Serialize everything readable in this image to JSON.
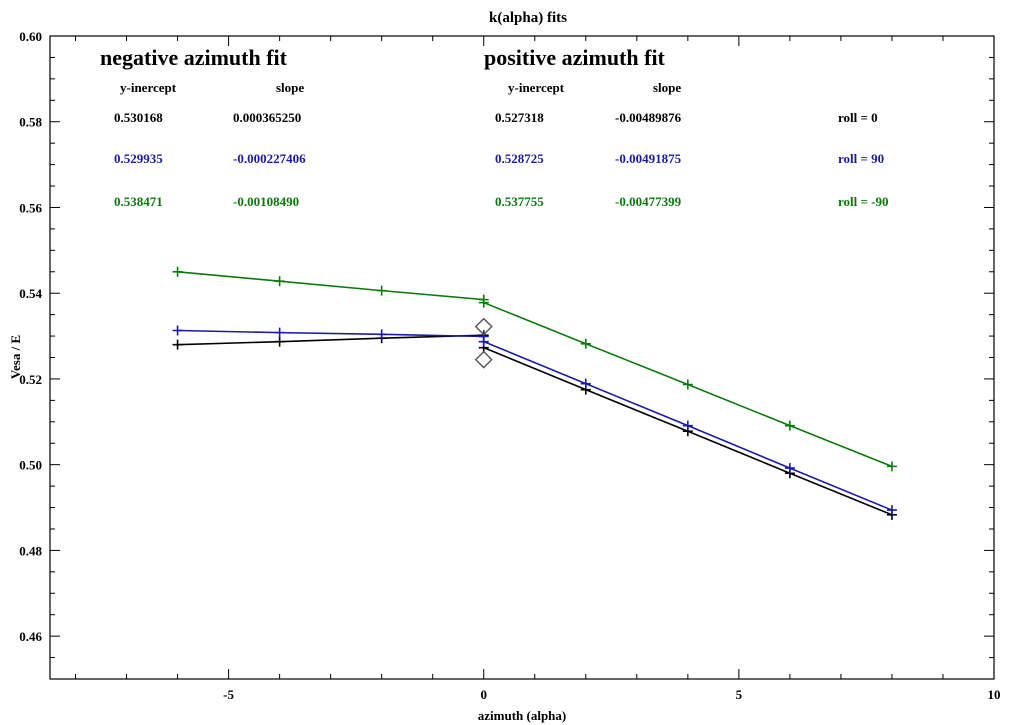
{
  "chart_data": {
    "type": "line",
    "title": "k(alpha) fits",
    "xlabel": "azimuth (alpha)",
    "ylabel": "Vesa / E",
    "xlim": [
      -8.5,
      10
    ],
    "ylim": [
      0.45,
      0.6
    ],
    "xticks": [
      -5,
      0,
      5,
      10
    ],
    "yticks": [
      0.46,
      0.48,
      0.5,
      0.52,
      0.54,
      0.56,
      0.58,
      0.6
    ],
    "x_tick_labels": [
      "-5",
      "0",
      "5",
      "10"
    ],
    "y_tick_labels": [
      "0.46",
      "0.48",
      "0.50",
      "0.52",
      "0.54",
      "0.56",
      "0.58",
      "0.60"
    ],
    "grid": false,
    "series": [
      {
        "color": "#000000",
        "x": [
          -6,
          -4,
          -2,
          0,
          0,
          2,
          4,
          6,
          8
        ],
        "y": [
          0.528,
          0.5287,
          0.5295,
          0.5302,
          0.5273,
          0.5175,
          0.5078,
          0.498,
          0.4883
        ]
      },
      {
        "color": "#1a1aa6",
        "x": [
          -6,
          -4,
          -2,
          0,
          0,
          2,
          4,
          6,
          8
        ],
        "y": [
          0.5313,
          0.5308,
          0.5304,
          0.5299,
          0.5287,
          0.5189,
          0.5091,
          0.4992,
          0.4894
        ]
      },
      {
        "color": "#0b7a0b",
        "x": [
          -6,
          -4,
          -2,
          0,
          0,
          2,
          4,
          6,
          8
        ],
        "y": [
          0.545,
          0.5428,
          0.5406,
          0.5385,
          0.5378,
          0.5282,
          0.5187,
          0.5091,
          0.4996
        ]
      }
    ],
    "diamonds": {
      "color": "#555555",
      "x": [
        0,
        0
      ],
      "y": [
        0.5322,
        0.5245
      ]
    },
    "annotations": {
      "negative_heading": "negative azimuth fit",
      "positive_heading": "positive azimuth fit",
      "negative_col_headers": [
        "y-inercept",
        "slope"
      ],
      "positive_col_headers": [
        "y-inercept",
        "slope"
      ],
      "rows": [
        {
          "color": "#000000",
          "neg_intercept": "0.530168",
          "neg_slope": "0.000365250",
          "pos_intercept": "0.527318",
          "pos_slope": "-0.00489876",
          "roll": "roll = 0"
        },
        {
          "color": "#1a1aa6",
          "neg_intercept": "0.529935",
          "neg_slope": "-0.000227406",
          "pos_intercept": "0.528725",
          "pos_slope": "-0.00491875",
          "roll": "roll = 90"
        },
        {
          "color": "#0b7a0b",
          "neg_intercept": "0.538471",
          "neg_slope": "-0.00108490",
          "pos_intercept": "0.537755",
          "pos_slope": "-0.00477399",
          "roll": "roll = -90"
        }
      ]
    }
  }
}
